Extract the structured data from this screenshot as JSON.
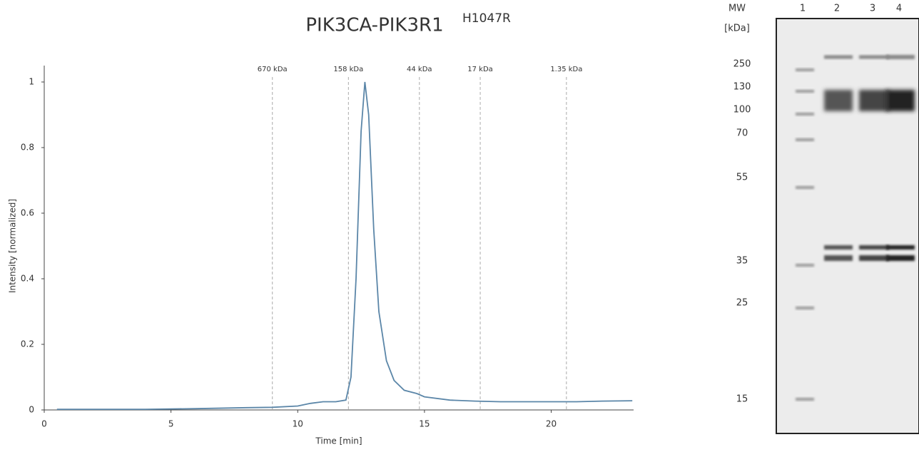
{
  "chart_data": {
    "type": "line",
    "title": "PIK3CA-PIK3R1",
    "title_superscript": "H1047R",
    "x_label": "Time [min]",
    "y_label": "Intensity [normalized]",
    "x": [
      0.5,
      2,
      4,
      6,
      8,
      9,
      10,
      10.5,
      11,
      11.5,
      11.9,
      12.1,
      12.3,
      12.5,
      12.65,
      12.8,
      13.0,
      13.2,
      13.5,
      13.8,
      14.2,
      14.7,
      15,
      16,
      17,
      18,
      20,
      21,
      22,
      23.2
    ],
    "values": [
      0.002,
      0.002,
      0.002,
      0.004,
      0.007,
      0.008,
      0.012,
      0.02,
      0.025,
      0.025,
      0.03,
      0.1,
      0.4,
      0.85,
      1.0,
      0.9,
      0.55,
      0.3,
      0.15,
      0.09,
      0.06,
      0.05,
      0.04,
      0.03,
      0.027,
      0.025,
      0.025,
      0.025,
      0.027,
      0.028
    ],
    "color": "#5b86a8",
    "xlim": [
      0,
      23.25
    ],
    "ylim": [
      0,
      1.05
    ],
    "xticks": [
      0,
      5,
      10,
      15,
      20
    ],
    "yticks": [
      0,
      0.2,
      0.4,
      0.6,
      0.8,
      1
    ],
    "annotations": [
      {
        "label": "670 kDa",
        "x": 9.0
      },
      {
        "label": "158 kDa",
        "x": 12.0
      },
      {
        "label": "44 kDa",
        "x": 14.8
      },
      {
        "label": "17 kDa",
        "x": 17.2
      },
      {
        "label": "1.35 kDa",
        "x": 20.6
      }
    ]
  },
  "gel": {
    "mw_label": "MW",
    "unit_label": "[kDa]",
    "lanes": [
      "1",
      "2",
      "3",
      "4"
    ],
    "markers": [
      "250",
      "130",
      "100",
      "70",
      "55",
      "35",
      "25",
      "15"
    ]
  }
}
